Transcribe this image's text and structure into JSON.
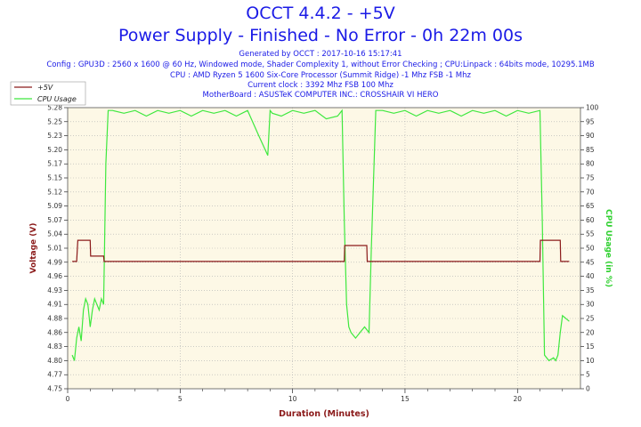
{
  "header": {
    "title": "OCCT 4.4.2 - +5V",
    "subtitle": "Power Supply - Finished - No Error - 0h 22m 00s",
    "generated": "Generated by OCCT : 2017-10-16 15:17:41",
    "config": "Config : GPU3D : 2560 x 1600 @ 60 Hz, Windowed mode, Shader Complexity 1, without Error Checking ; CPU:Linpack : 64bits mode, 10295.1MB",
    "cpu": "CPU : AMD Ryzen 5 1600 Six-Core Processor (Summit Ridge) -1 Mhz FSB -1 Mhz",
    "clock": "Current clock : 3392 Mhz FSB 100 Mhz",
    "motherboard": "MotherBoard : ASUSTeK COMPUTER INC.: CROSSHAIR VI HERO"
  },
  "colors": {
    "voltage": "#8b1a1a",
    "cpu": "#3ee83e",
    "text": "#1a1ae6",
    "plot_bg": "#fdf8e6",
    "grid": "#b0b0b0"
  },
  "chart_data": {
    "type": "line",
    "xlabel": "Duration (Minutes)",
    "ylabel": "Voltage (V)",
    "y2label": "CPU Usage (in %)",
    "xlim": [
      0,
      22.8
    ],
    "ylim": [
      4.75,
      5.28
    ],
    "y2lim": [
      0,
      100
    ],
    "x_ticks": [
      "0",
      "5",
      "10",
      "15",
      "20"
    ],
    "x_tick_values": [
      0,
      5,
      10,
      15,
      20
    ],
    "y_ticks": [
      "4.75",
      "4.77",
      "4.80",
      "4.83",
      "4.86",
      "4.88",
      "4.91",
      "4.93",
      "4.96",
      "4.99",
      "5.01",
      "5.04",
      "5.07",
      "5.09",
      "5.12",
      "5.15",
      "5.17",
      "5.20",
      "5.23",
      "5.25",
      "5.28"
    ],
    "y2_ticks": [
      "0",
      "5",
      "10",
      "15",
      "20",
      "25",
      "30",
      "35",
      "40",
      "45",
      "50",
      "55",
      "60",
      "65",
      "70",
      "75",
      "80",
      "85",
      "90",
      "95",
      "100"
    ],
    "legend": {
      "position": "top-left"
    },
    "grid": true,
    "series": [
      {
        "name": "+5V",
        "axis": "left",
        "x": [
          0.2,
          0.4,
          0.45,
          1.0,
          1.02,
          1.6,
          1.62,
          12.3,
          12.32,
          13.3,
          13.32,
          21.0,
          21.02,
          21.9,
          21.92,
          22.3
        ],
        "y": [
          4.99,
          4.99,
          5.03,
          5.03,
          5.0,
          5.0,
          4.99,
          4.99,
          5.02,
          5.02,
          4.99,
          4.99,
          5.03,
          5.03,
          4.99,
          4.99
        ]
      },
      {
        "name": "CPU Usage",
        "axis": "right",
        "x": [
          0.2,
          0.3,
          0.4,
          0.5,
          0.6,
          0.7,
          0.8,
          0.9,
          1.0,
          1.1,
          1.2,
          1.3,
          1.4,
          1.5,
          1.6,
          1.7,
          1.8,
          2.0,
          2.5,
          3.0,
          3.5,
          4.0,
          4.5,
          5.0,
          5.5,
          6.0,
          6.5,
          7.0,
          7.5,
          8.0,
          8.5,
          8.9,
          9.0,
          9.1,
          9.5,
          10.0,
          10.5,
          11.0,
          11.5,
          12.0,
          12.2,
          12.3,
          12.4,
          12.5,
          12.6,
          12.8,
          13.0,
          13.2,
          13.4,
          13.5,
          13.7,
          14.0,
          14.5,
          15.0,
          15.5,
          16.0,
          16.5,
          17.0,
          17.5,
          18.0,
          18.5,
          19.0,
          19.5,
          20.0,
          20.5,
          21.0,
          21.1,
          21.2,
          21.4,
          21.6,
          21.7,
          21.8,
          21.9,
          22.0,
          22.3
        ],
        "y": [
          12,
          10,
          18,
          22,
          17,
          28,
          32,
          30,
          22,
          28,
          32,
          30,
          28,
          32,
          30,
          80,
          99,
          99,
          98,
          99,
          97,
          99,
          98,
          99,
          97,
          99,
          98,
          99,
          97,
          99,
          90,
          83,
          99,
          98,
          97,
          99,
          98,
          99,
          96,
          97,
          99,
          60,
          30,
          22,
          20,
          18,
          20,
          22,
          20,
          50,
          99,
          99,
          98,
          99,
          97,
          99,
          98,
          99,
          97,
          99,
          98,
          99,
          97,
          99,
          98,
          99,
          60,
          12,
          10,
          11,
          10,
          12,
          20,
          26,
          24
        ]
      }
    ]
  }
}
